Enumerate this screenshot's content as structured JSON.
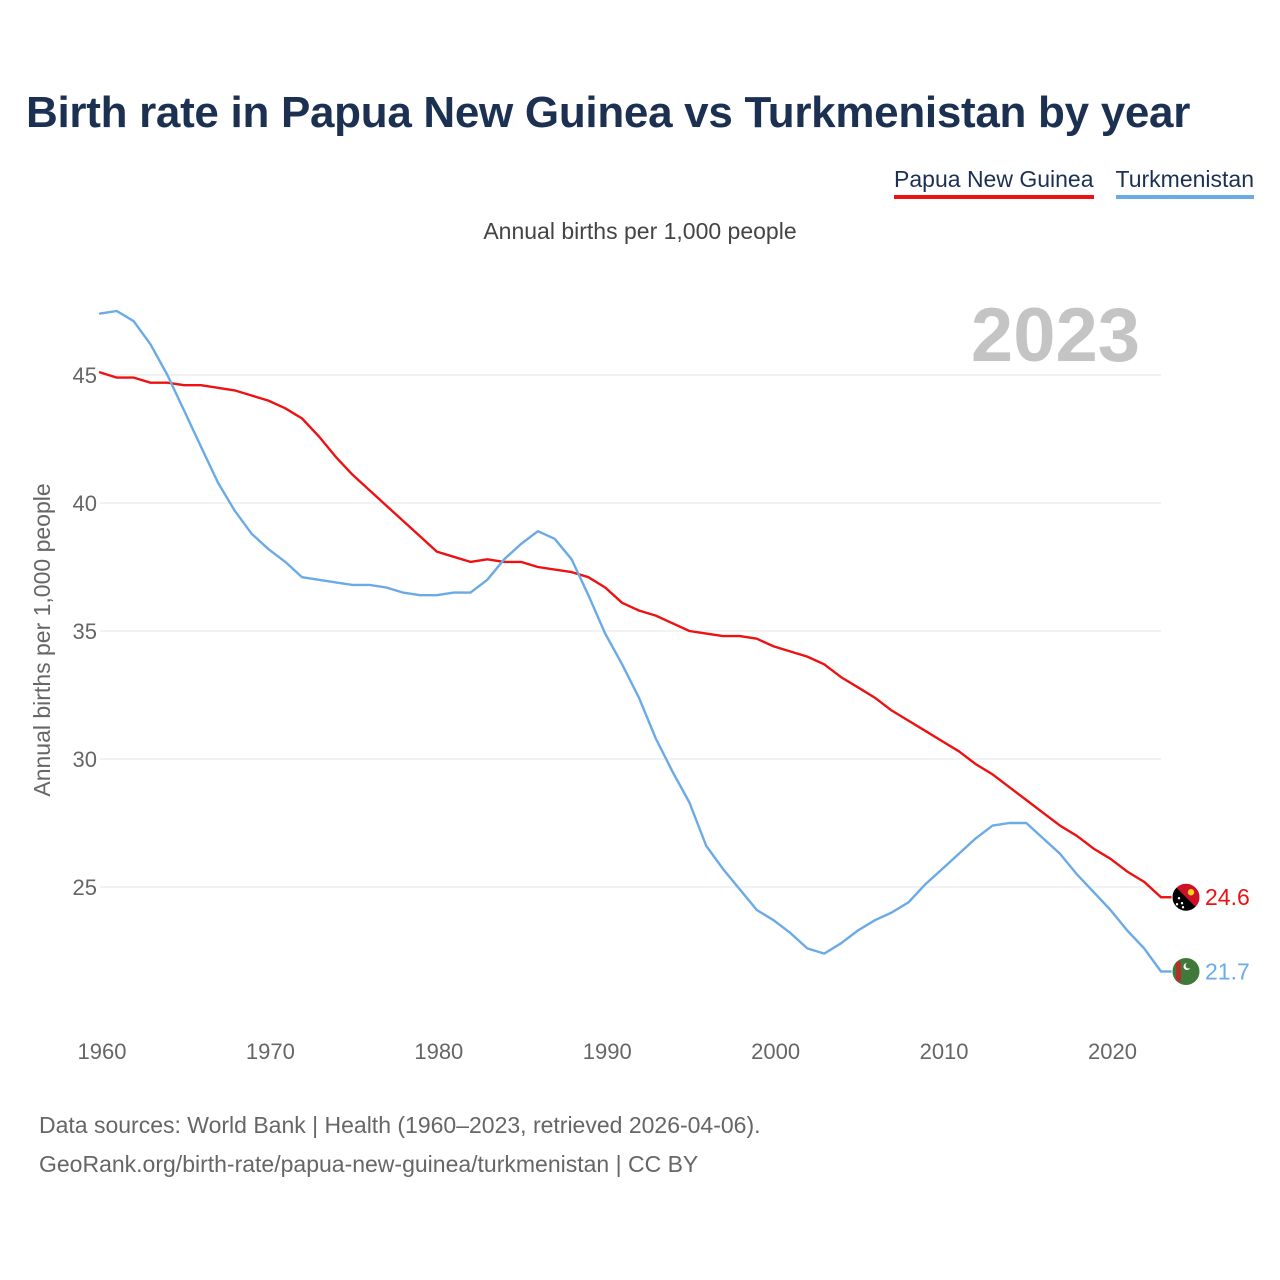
{
  "header": {
    "title": "Birth rate in Papua New Guinea vs Turkmenistan by year",
    "subtitle": "Annual births per 1,000 people"
  },
  "legend": {
    "items": [
      {
        "label": "Papua New Guinea",
        "color": "#ee1111"
      },
      {
        "label": "Turkmenistan",
        "color": "#6aaae6"
      }
    ]
  },
  "footer": {
    "source_line1": "Data sources: World Bank | Health (1960–2023, retrieved 2026-04-06).",
    "source_line2": "GeoRank.org/birth-rate/papua-new-guinea/turkmenistan | CC BY"
  },
  "chart_data": {
    "type": "line",
    "title": "Birth rate in Papua New Guinea vs Turkmenistan by year",
    "ylabel": "Annual births per 1,000 people",
    "xlabel": "",
    "year_label": "2023",
    "xlim": [
      1960,
      2023
    ],
    "ylim": [
      20,
      48
    ],
    "xticks": [
      1960,
      1970,
      1980,
      1990,
      2000,
      2010,
      2020
    ],
    "yticks": [
      25,
      30,
      35,
      40,
      45
    ],
    "grid": true,
    "x": [
      1960,
      1961,
      1962,
      1963,
      1964,
      1965,
      1966,
      1967,
      1968,
      1969,
      1970,
      1971,
      1972,
      1973,
      1974,
      1975,
      1976,
      1977,
      1978,
      1979,
      1980,
      1981,
      1982,
      1983,
      1984,
      1985,
      1986,
      1987,
      1988,
      1989,
      1990,
      1991,
      1992,
      1993,
      1994,
      1995,
      1996,
      1997,
      1998,
      1999,
      2000,
      2001,
      2002,
      2003,
      2004,
      2005,
      2006,
      2007,
      2008,
      2009,
      2010,
      2011,
      2012,
      2013,
      2014,
      2015,
      2016,
      2017,
      2018,
      2019,
      2020,
      2021,
      2022,
      2023
    ],
    "series": [
      {
        "name": "Papua New Guinea",
        "color": "#ee1111",
        "end_label": "24.6",
        "flag": "papua-new-guinea-flag-icon",
        "values": [
          45.1,
          44.9,
          44.9,
          44.7,
          44.7,
          44.6,
          44.6,
          44.5,
          44.4,
          44.2,
          44.0,
          43.7,
          43.3,
          42.6,
          41.8,
          41.1,
          40.5,
          39.9,
          39.3,
          38.7,
          38.1,
          37.9,
          37.7,
          37.8,
          37.7,
          37.7,
          37.5,
          37.4,
          37.3,
          37.1,
          36.7,
          36.1,
          35.8,
          35.6,
          35.3,
          35.0,
          34.9,
          34.8,
          34.8,
          34.7,
          34.4,
          34.2,
          34.0,
          33.7,
          33.2,
          32.8,
          32.4,
          31.9,
          31.5,
          31.1,
          30.7,
          30.3,
          29.8,
          29.4,
          28.9,
          28.4,
          27.9,
          27.4,
          27.0,
          26.5,
          26.1,
          25.6,
          25.2,
          24.6
        ]
      },
      {
        "name": "Turkmenistan",
        "color": "#6aaae6",
        "end_label": "21.7",
        "flag": "turkmenistan-flag-icon",
        "values": [
          47.4,
          47.5,
          47.1,
          46.2,
          45.0,
          43.6,
          42.2,
          40.8,
          39.7,
          38.8,
          38.2,
          37.7,
          37.1,
          37.0,
          36.9,
          36.8,
          36.8,
          36.7,
          36.5,
          36.4,
          36.4,
          36.5,
          36.5,
          37.0,
          37.8,
          38.4,
          38.9,
          38.6,
          37.8,
          36.4,
          34.9,
          33.7,
          32.4,
          30.8,
          29.5,
          28.3,
          26.6,
          25.7,
          24.9,
          24.1,
          23.7,
          23.2,
          22.6,
          22.4,
          22.8,
          23.3,
          23.7,
          24.0,
          24.4,
          25.1,
          25.7,
          26.3,
          26.9,
          27.4,
          27.5,
          27.5,
          26.9,
          26.3,
          25.5,
          24.8,
          24.1,
          23.3,
          22.6,
          21.7
        ]
      }
    ]
  }
}
